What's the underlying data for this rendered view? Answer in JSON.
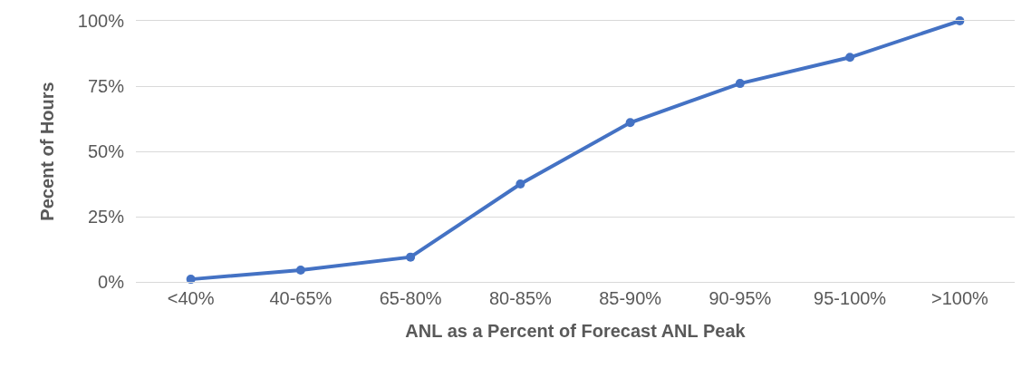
{
  "chart_data": {
    "type": "line",
    "xlabel": "ANL as a Percent of Forecast ANL Peak",
    "ylabel": "Pecent of Hours",
    "categories": [
      "<40%",
      "40-65%",
      "65-80%",
      "80-85%",
      "85-90%",
      "90-95%",
      "95-100%",
      ">100%"
    ],
    "series": [
      {
        "color": "#4472c4",
        "values": [
          1,
          4.5,
          9.5,
          37.5,
          61,
          76,
          86,
          100
        ]
      }
    ],
    "ylim": [
      0,
      100
    ],
    "yticks": [
      {
        "value": 0,
        "label": "0%"
      },
      {
        "value": 25,
        "label": "25%"
      },
      {
        "value": 50,
        "label": "50%"
      },
      {
        "value": 75,
        "label": "75%"
      },
      {
        "value": 100,
        "label": "100%"
      }
    ],
    "grid": "y",
    "marker": "circle",
    "line_style": "solid"
  }
}
